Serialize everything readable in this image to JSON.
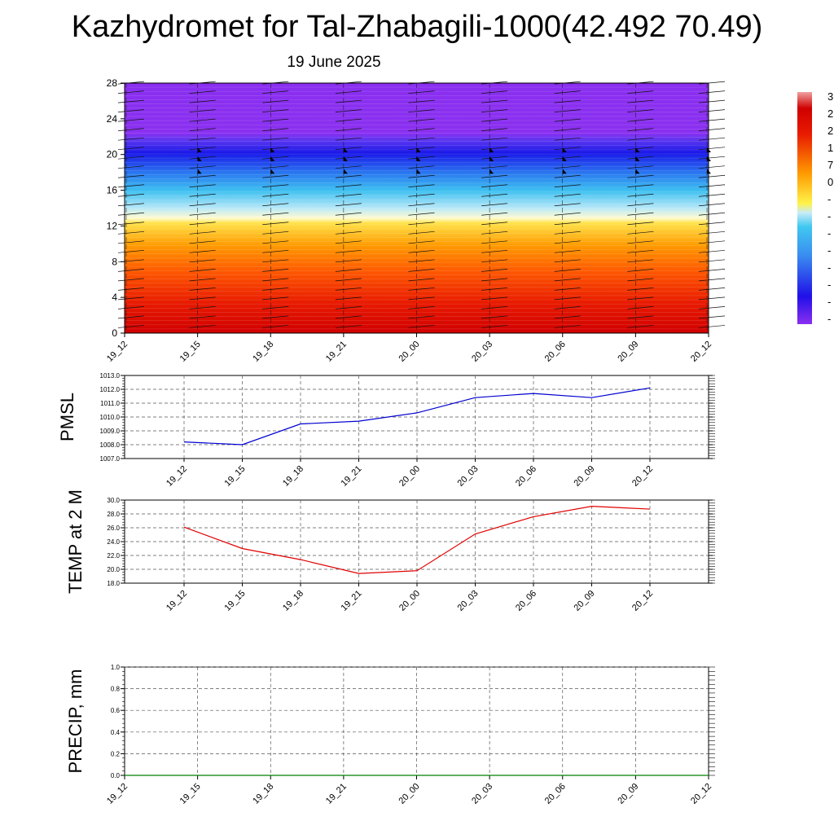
{
  "title": "Kazhydromet for Tal-Zhabagili-1000(42.492 70.49)",
  "subtitle": "19 June 2025",
  "chart_data": [
    {
      "type": "heatmap",
      "name": "vertical-profile",
      "x_categories": [
        "19_12",
        "19_15",
        "19_18",
        "19_21",
        "20_00",
        "20_03",
        "20_06",
        "20_09",
        "20_12"
      ],
      "ylim": [
        0,
        28
      ],
      "y_ticks": [
        0,
        4,
        8,
        12,
        16,
        20,
        24,
        28
      ],
      "colorbar_labels": [
        "3",
        "2",
        "2",
        "1",
        "7",
        "0",
        "-",
        "-",
        "-",
        "-",
        "-",
        "-",
        "-",
        "-"
      ],
      "colors": {
        "bottom": "#d40000",
        "orange": "#ff8a00",
        "yellow": "#fff34a",
        "lightblue": "#49c8f0",
        "blue": "#1e2ef0",
        "top": "#8a2ff0"
      }
    },
    {
      "type": "line",
      "name": "pmsl",
      "ylabel": "PMSL",
      "x": [
        "19_12",
        "19_15",
        "19_18",
        "19_21",
        "20_00",
        "20_03",
        "20_06",
        "20_09",
        "20_12"
      ],
      "values": [
        1008.2,
        1008.0,
        1009.5,
        1009.7,
        1010.3,
        1011.4,
        1011.7,
        1011.4,
        1012.1
      ],
      "ylim": [
        1007.0,
        1013.0
      ],
      "y_ticks": [
        "1007.0",
        "1008.0",
        "1009.0",
        "1010.0",
        "1011.0",
        "1012.0",
        "1013.0"
      ],
      "color": "#0000d0",
      "grid": true
    },
    {
      "type": "line",
      "name": "temp2m",
      "ylabel": "TEMP at 2 M",
      "x": [
        "19_12",
        "19_15",
        "19_18",
        "19_21",
        "20_00",
        "20_03",
        "20_06",
        "20_09",
        "20_12"
      ],
      "values": [
        26.1,
        23.0,
        21.4,
        19.4,
        19.8,
        25.1,
        27.6,
        29.1,
        28.7
      ],
      "ylim": [
        18.0,
        30.0
      ],
      "y_ticks": [
        "18.0",
        "20.0",
        "22.0",
        "24.0",
        "26.0",
        "28.0",
        "30.0"
      ],
      "color": "#e00000",
      "grid": true
    },
    {
      "type": "line",
      "name": "precip",
      "ylabel": "PRECIP, mm",
      "x": [
        "19_12",
        "19_15",
        "19_18",
        "19_21",
        "20_00",
        "20_03",
        "20_06",
        "20_09",
        "20_12"
      ],
      "values": [
        0,
        0,
        0,
        0,
        0,
        0,
        0,
        0,
        0
      ],
      "ylim": [
        0.0,
        1.0
      ],
      "y_ticks": [
        "0.0",
        "0.2",
        "0.4",
        "0.6",
        "0.8",
        "1.0"
      ],
      "color": "#008000",
      "grid": true
    }
  ]
}
